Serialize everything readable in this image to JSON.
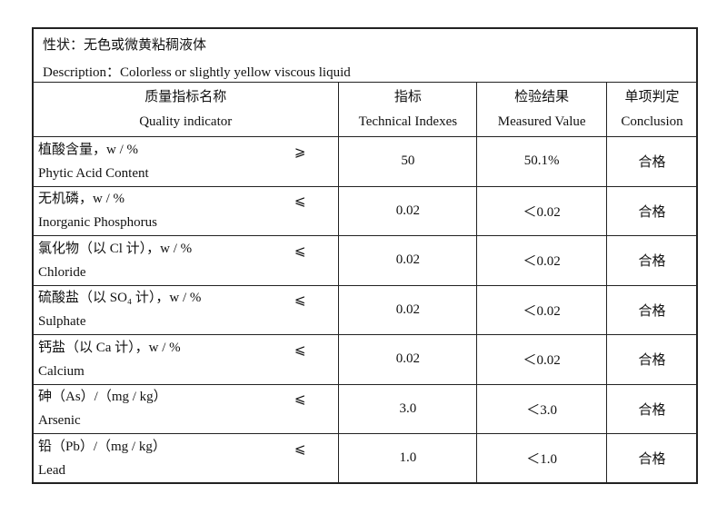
{
  "description_cn": "性状：无色或微黄粘稠液体",
  "description_en": "Description：Colorless or slightly yellow viscous liquid",
  "headers": [
    {
      "cn": "质量指标名称",
      "en": "Quality indicator"
    },
    {
      "cn": "指标",
      "en": "Technical Indexes"
    },
    {
      "cn": "检验结果",
      "en": "Measured Value"
    },
    {
      "cn": "单项判定",
      "en": "Conclusion"
    }
  ],
  "rows": [
    {
      "cn": "植酸含量，w / %",
      "en": "Phytic Acid Content",
      "sym": "⩾",
      "index": "50",
      "measured": "50.1%",
      "conclusion": "合格"
    },
    {
      "cn": "无机磷，w / %",
      "en": "Inorganic Phosphorus",
      "sym": "⩽",
      "index": "0.02",
      "measured": "＜0.02",
      "conclusion": "合格"
    },
    {
      "cn": "氯化物（以 Cl 计），w / %",
      "en": "Chloride",
      "sym": "⩽",
      "index": "0.02",
      "measured": "＜0.02",
      "conclusion": "合格"
    },
    {
      "cn": "硫酸盐（以 SO₄ 计），w / %",
      "en": "Sulphate",
      "sym": "⩽",
      "index": "0.02",
      "measured": "＜0.02",
      "conclusion": "合格"
    },
    {
      "cn": "钙盐（以 Ca 计），w / %",
      "en": "Calcium",
      "sym": "⩽",
      "index": "0.02",
      "measured": "＜0.02",
      "conclusion": "合格"
    },
    {
      "cn": "砷（As）/（mg / kg）",
      "en": "Arsenic",
      "sym": "⩽",
      "index": "3.0",
      "measured": "＜3.0",
      "conclusion": "合格"
    },
    {
      "cn": "铅（Pb）/（mg / kg）",
      "en": "Lead",
      "sym": "⩽",
      "index": "1.0",
      "measured": "＜1.0",
      "conclusion": "合格"
    }
  ]
}
